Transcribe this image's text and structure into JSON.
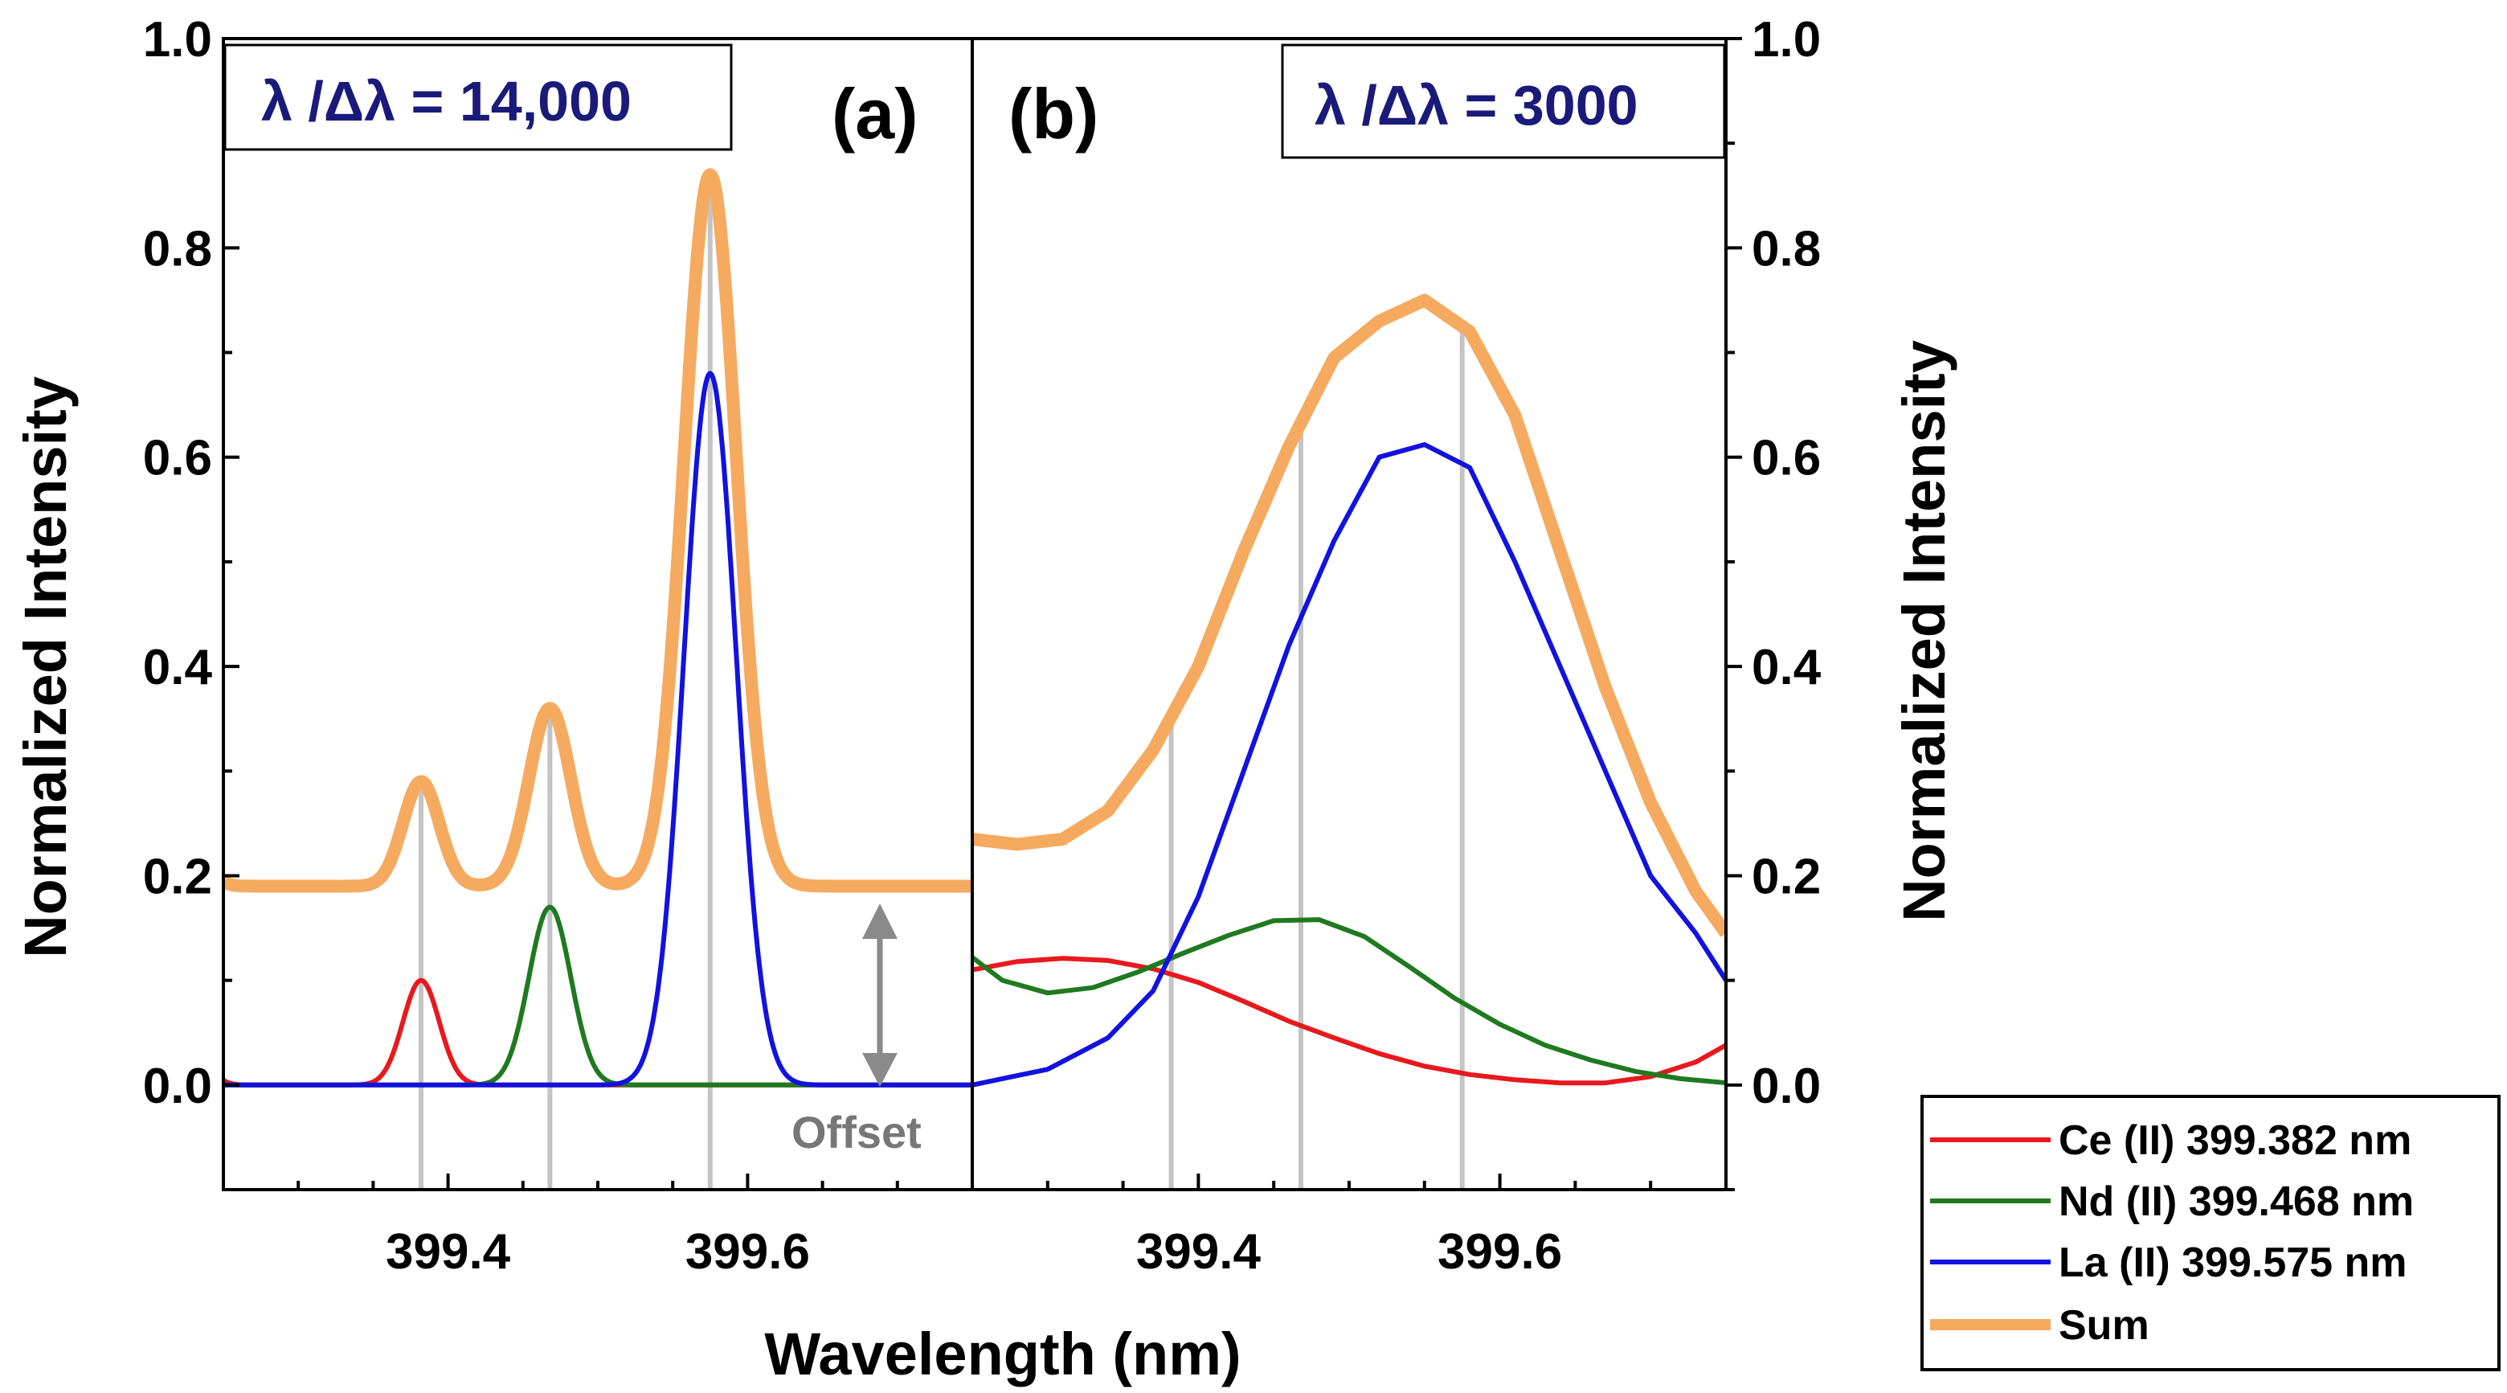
{
  "chart_data": {
    "type": "line",
    "shared": {
      "xlabel": "Wavelength (nm)",
      "ylabel": "Normalized Intensity",
      "xlim": [
        399.25,
        399.75
      ],
      "ylim": [
        -0.1,
        1.0
      ],
      "xticks": [
        399.4,
        399.6
      ],
      "xtick_labels": [
        "399.4",
        "399.6"
      ],
      "yticks": [
        0.0,
        0.2,
        0.4,
        0.6,
        0.8,
        1.0
      ],
      "ytick_labels": [
        "0.0",
        "0.2",
        "0.4",
        "0.6",
        "0.8",
        "1.0"
      ],
      "reference_lines_nm": [
        399.382,
        399.468,
        399.575
      ],
      "legend": {
        "placement": "bottom-right, outside plot",
        "entries": [
          {
            "label": "Ce (II) 399.382 nm",
            "color": "#e8191d"
          },
          {
            "label": "Nd (II) 399.468 nm",
            "color": "#1f7a1f"
          },
          {
            "label": "La (II) 399.575 nm",
            "color": "#1212e0"
          },
          {
            "label": "Sum",
            "color": "#f5aa5f"
          }
        ]
      }
    },
    "panels": [
      {
        "id": "a",
        "panel_label": "(a)",
        "resolution_text": "λ /Δλ = 14,000",
        "offset_label": "Offset",
        "sum_offset": 0.19,
        "series": [
          {
            "name": "Ce (II) 399.382 nm",
            "kind": "gauss",
            "center": 399.382,
            "amplitude": 0.1,
            "fwhm": 0.0285,
            "tail_from": {
              "center": 399.22,
              "amplitude": 0.1,
              "fwhm": 0.0285
            }
          },
          {
            "name": "Nd (II) 399.468 nm",
            "kind": "gauss",
            "center": 399.468,
            "amplitude": 0.17,
            "fwhm": 0.033
          },
          {
            "name": "La (II) 399.575 nm",
            "kind": "gauss",
            "center": 399.575,
            "amplitude": 0.68,
            "fwhm": 0.041
          },
          {
            "name": "Sum",
            "kind": "sum_plus_offset"
          }
        ]
      },
      {
        "id": "b",
        "panel_label": "(b)",
        "resolution_text": "λ /Δλ = 3000",
        "series": [
          {
            "name": "Ce (II) 399.382 nm",
            "x": [
              399.25,
              399.28,
              399.31,
              399.34,
              399.37,
              399.4,
              399.43,
              399.46,
              399.49,
              399.52,
              399.55,
              399.58,
              399.61,
              399.64,
              399.67,
              399.7,
              399.73,
              399.75
            ],
            "y": [
              0.11,
              0.118,
              0.121,
              0.119,
              0.111,
              0.098,
              0.08,
              0.061,
              0.045,
              0.03,
              0.018,
              0.01,
              0.005,
              0.002,
              0.002,
              0.008,
              0.022,
              0.038
            ]
          },
          {
            "name": "Nd (II) 399.468 nm",
            "x": [
              399.25,
              399.27,
              399.3,
              399.33,
              399.36,
              399.39,
              399.42,
              399.45,
              399.48,
              399.51,
              399.54,
              399.57,
              399.6,
              399.63,
              399.66,
              399.69,
              399.72,
              399.75
            ],
            "y": [
              0.122,
              0.1,
              0.088,
              0.093,
              0.108,
              0.126,
              0.143,
              0.157,
              0.158,
              0.142,
              0.113,
              0.083,
              0.058,
              0.038,
              0.024,
              0.013,
              0.006,
              0.002
            ]
          },
          {
            "name": "La (II) 399.575 nm",
            "x": [
              399.25,
              399.3,
              399.34,
              399.37,
              399.4,
              399.43,
              399.46,
              399.49,
              399.52,
              399.55,
              399.58,
              399.61,
              399.64,
              399.67,
              399.7,
              399.73,
              399.75
            ],
            "y": [
              0.0,
              0.015,
              0.045,
              0.09,
              0.18,
              0.3,
              0.42,
              0.52,
              0.6,
              0.612,
              0.59,
              0.5,
              0.4,
              0.3,
              0.2,
              0.145,
              0.1
            ]
          },
          {
            "name": "Sum",
            "x": [
              399.25,
              399.28,
              399.31,
              399.34,
              399.37,
              399.4,
              399.43,
              399.46,
              399.49,
              399.52,
              399.55,
              399.58,
              399.61,
              399.64,
              399.67,
              399.7,
              399.73,
              399.75
            ],
            "y": [
              0.235,
              0.23,
              0.235,
              0.262,
              0.32,
              0.4,
              0.51,
              0.61,
              0.695,
              0.73,
              0.75,
              0.72,
              0.64,
              0.51,
              0.38,
              0.27,
              0.185,
              0.145
            ]
          }
        ]
      }
    ]
  }
}
